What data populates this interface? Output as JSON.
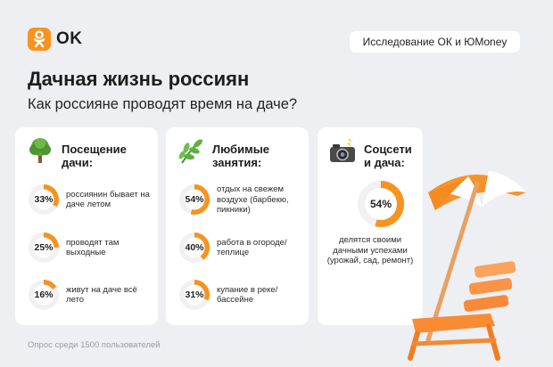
{
  "brand": {
    "name": "OK",
    "logo_icon": "odnoklassniki-logo-icon",
    "accent": "#f7931e"
  },
  "study_label": "Исследование ОК и ЮMoney",
  "title": "Дачная жизнь россиян",
  "subtitle": "Как россияне проводят время на даче?",
  "cards": [
    {
      "icon": "tree-icon",
      "title_line1": "Посещение",
      "title_line2": "дачи:",
      "items": [
        {
          "value": 33,
          "label": "33%",
          "text": "россиянин бывает на даче летом"
        },
        {
          "value": 25,
          "label": "25%",
          "text": "проводят там выходные"
        },
        {
          "value": 16,
          "label": "16%",
          "text": "живут на даче всё лето"
        }
      ]
    },
    {
      "icon": "herb-icon",
      "title_line1": "Любимые",
      "title_line2": "занятия:",
      "items": [
        {
          "value": 54,
          "label": "54%",
          "text": "отдых на свежем воздухе (барбекю, пикники)"
        },
        {
          "value": 40,
          "label": "40%",
          "text": "работа в огороде/ теплице"
        },
        {
          "value": 31,
          "label": "31%",
          "text": "купание в реке/ бассейне"
        }
      ]
    },
    {
      "icon": "camera-flash-icon",
      "title_line1": "Соцсети",
      "title_line2": "и дача:",
      "items": [
        {
          "value": 54,
          "label": "54%",
          "text": "делятся своими дачными успехами (урожай, сад, ремонт)"
        }
      ]
    }
  ],
  "footer": "Опрос  среди 1500 пользователей",
  "colors": {
    "ring_fill": "#f7931e",
    "ring_track": "#f1f1f4",
    "background": "#edeff3"
  }
}
